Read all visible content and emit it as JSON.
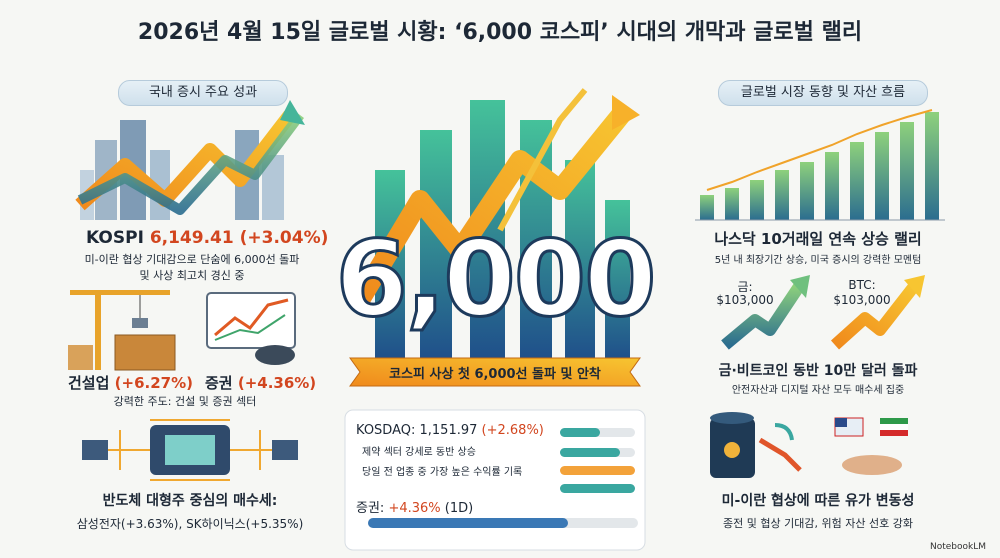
{
  "title": "2026년 4월 15일 글로벌 시황: ‘6,000 코스피’ 시대의 개막과 글로벌 랠리",
  "left": {
    "header": "국내 증시 주요 성과",
    "kospi": {
      "label": "KOSPI",
      "value": "6,149.41 (+3.04%)",
      "lines": [
        "미-이란 협상 기대감으로 단숨에 6,000선 돌파",
        "및 사상 최고치 경신 중"
      ]
    },
    "sectors": [
      {
        "name": "건설업",
        "change": "(+6.27%)"
      },
      {
        "name": "증권",
        "change": "(+4.36%)"
      }
    ],
    "sector_caption": "강력한 주도: 건설 및 증권 섹터",
    "semis": {
      "title": "반도체 대형주 중심의 매수세:",
      "detail": "삼성전자(+3.63%), SK하이닉스(+5.35%)"
    }
  },
  "center": {
    "big": "6,000",
    "banner": "코스피 사상 첫 6,000선 돌파 및 안착",
    "kosdaq": {
      "label": "KOSDAQ:",
      "value": "1,151.97",
      "change": "(+2.68%)",
      "notes": [
        "제약 섹터 강세로 동반 상승",
        "당일 전 업종 중 가장 높은 수익률 기록"
      ],
      "securities": {
        "label": "증권:",
        "change": "+4.36%",
        "period": "(1D)"
      }
    }
  },
  "right": {
    "header": "글로벌 시장 동향 및 자산 흐름",
    "nasdaq": {
      "title": "나스닥 10거래일 연속 상승 랠리",
      "detail": "5년 내 최장기간 상승, 미국 증시의 강력한 모멘텀"
    },
    "assets": [
      {
        "label": "금:",
        "value": "$103,000"
      },
      {
        "label": "BTC:",
        "value": "$103,000"
      }
    ],
    "assets_title": "금·비트코인 동반 10만 달러 돌파",
    "assets_detail": "안전자산과 디지털 자산 모두 매수세 집중",
    "oil": {
      "title": "미-이란 협상에 따른 유가 변동성",
      "detail": "종전 및 협상 기대감, 위험 자산 선호 강화"
    }
  },
  "footer": "NotebookLM"
}
